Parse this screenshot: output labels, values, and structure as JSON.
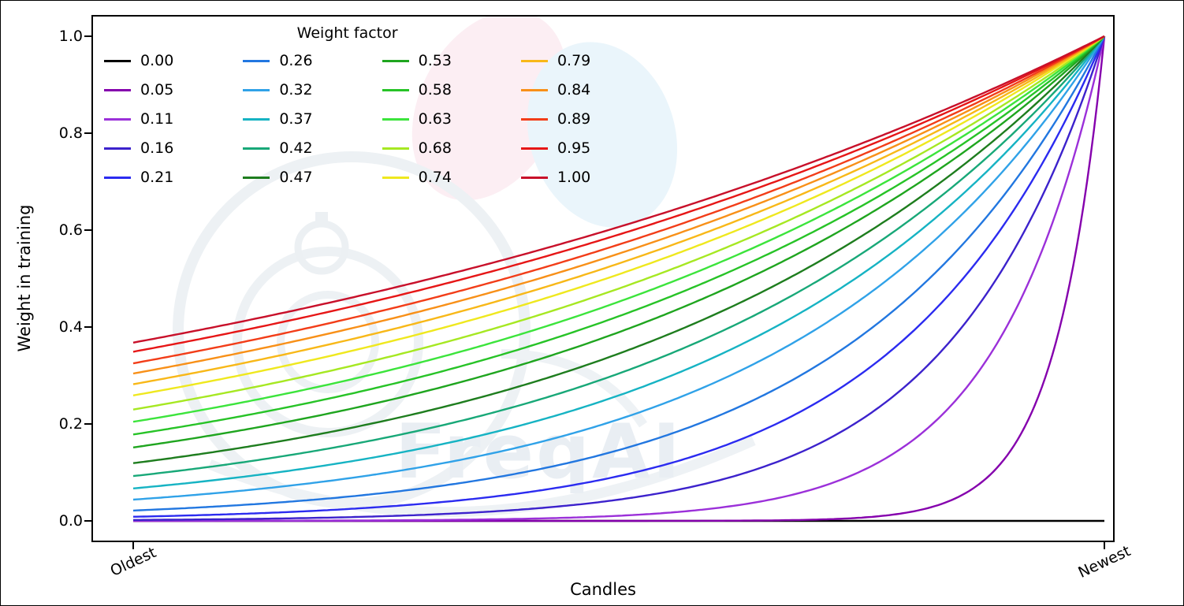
{
  "chart_data": {
    "type": "line",
    "title": "",
    "xlabel": "Candles",
    "ylabel": "Weight in training",
    "x_ticks": [
      {
        "label": "Oldest",
        "t": 0
      },
      {
        "label": "Newest",
        "t": 1
      }
    ],
    "y_ticks": [
      "0.0",
      "0.2",
      "0.4",
      "0.6",
      "0.8",
      "1.0"
    ],
    "ylim": [
      0,
      1
    ],
    "grid": false,
    "legend_title": "Weight factor",
    "legend_position": "upper left, 4 columns x 5 rows, column-major",
    "formula": "weight(t) = exp(-(1 - t) / factor) for factor > 0, t normalized 0 (oldest) to 1 (newest); factor 0.00 stays at 0",
    "series": [
      {
        "name": "0.00",
        "factor": 0.0,
        "color": "#000000"
      },
      {
        "name": "0.05",
        "factor": 0.05,
        "color": "#8500ad"
      },
      {
        "name": "0.11",
        "factor": 0.11,
        "color": "#9b30d9"
      },
      {
        "name": "0.16",
        "factor": 0.16,
        "color": "#3c22cc"
      },
      {
        "name": "0.21",
        "factor": 0.21,
        "color": "#2b2bf0"
      },
      {
        "name": "0.26",
        "factor": 0.26,
        "color": "#2277e0"
      },
      {
        "name": "0.32",
        "factor": 0.32,
        "color": "#30a2e8"
      },
      {
        "name": "0.37",
        "factor": 0.37,
        "color": "#16b3c3"
      },
      {
        "name": "0.42",
        "factor": 0.42,
        "color": "#18a878"
      },
      {
        "name": "0.47",
        "factor": 0.47,
        "color": "#1e7d1e"
      },
      {
        "name": "0.53",
        "factor": 0.53,
        "color": "#1fa51f"
      },
      {
        "name": "0.58",
        "factor": 0.58,
        "color": "#27c327"
      },
      {
        "name": "0.63",
        "factor": 0.63,
        "color": "#3ce43c"
      },
      {
        "name": "0.68",
        "factor": 0.68,
        "color": "#a6e822"
      },
      {
        "name": "0.74",
        "factor": 0.74,
        "color": "#efe81e"
      },
      {
        "name": "0.79",
        "factor": 0.79,
        "color": "#f8b818"
      },
      {
        "name": "0.84",
        "factor": 0.84,
        "color": "#f89018"
      },
      {
        "name": "0.89",
        "factor": 0.89,
        "color": "#f23d18"
      },
      {
        "name": "0.95",
        "factor": 0.95,
        "color": "#e61616"
      },
      {
        "name": "1.00",
        "factor": 1.0,
        "color": "#c8102a"
      }
    ]
  },
  "watermark": {
    "text": "FreqAI"
  }
}
